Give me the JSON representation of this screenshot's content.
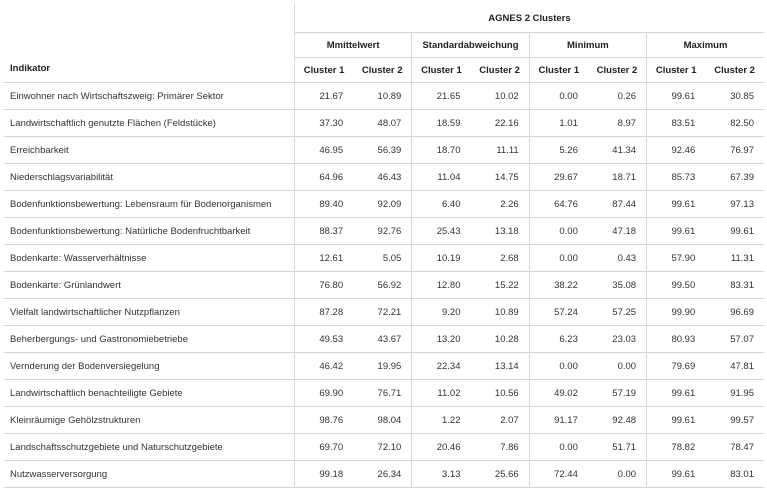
{
  "table": {
    "indicator_header": "Indikator",
    "title": "AGNES 2 Clusters",
    "groups": [
      "Mmittelwert",
      "Standardabweichung",
      "Minimum",
      "Maximum"
    ],
    "cluster_labels": [
      "Cluster 1",
      "Cluster 2"
    ],
    "rows": [
      {
        "label": "Einwohner nach Wirtschaftszweig: Primärer Sektor",
        "values": [
          "21.67",
          "10.89",
          "21.65",
          "10.02",
          "0.00",
          "0.26",
          "99.61",
          "30.85"
        ]
      },
      {
        "label": "Landwirtschaftlich genutzte Flächen (Feldstücke)",
        "values": [
          "37.30",
          "48.07",
          "18.59",
          "22.16",
          "1.01",
          "8.97",
          "83.51",
          "82.50"
        ]
      },
      {
        "label": "Erreichbarkeit",
        "values": [
          "46.95",
          "56.39",
          "18.70",
          "11.11",
          "5.26",
          "41.34",
          "92.46",
          "76.97"
        ]
      },
      {
        "label": "Niederschlagsvariabilität",
        "values": [
          "64.96",
          "46.43",
          "11.04",
          "14.75",
          "29.67",
          "18.71",
          "85.73",
          "67.39"
        ]
      },
      {
        "label": "Bodenfunktionsbewertung: Lebensraum für Bodenorganismen",
        "values": [
          "89.40",
          "92.09",
          "6.40",
          "2.26",
          "64.76",
          "87.44",
          "99.61",
          "97.13"
        ]
      },
      {
        "label": "Bodenfunktionsbewertung: Natürliche Bodenfruchtbarkeit",
        "values": [
          "88.37",
          "92.76",
          "25.43",
          "13.18",
          "0.00",
          "47.18",
          "99.61",
          "99.61"
        ]
      },
      {
        "label": "Bodenkarte: Wasserverhältnisse",
        "values": [
          "12.61",
          "5.05",
          "10.19",
          "2.68",
          "0.00",
          "0.43",
          "57.90",
          "11.31"
        ]
      },
      {
        "label": "Bodenkarte: Grünlandwert",
        "values": [
          "76.80",
          "56.92",
          "12.80",
          "15.22",
          "38.22",
          "35.08",
          "99.50",
          "83.31"
        ]
      },
      {
        "label": "Vielfalt landwirtschaftlicher Nutzpflanzen",
        "values": [
          "87.28",
          "72.21",
          "9.20",
          "10.89",
          "57.24",
          "57.25",
          "99.90",
          "96.69"
        ]
      },
      {
        "label": "Beherbergungs- und Gastronomiebetriebe",
        "values": [
          "49.53",
          "43.67",
          "13.20",
          "10.28",
          "6.23",
          "23.03",
          "80.93",
          "57.07"
        ]
      },
      {
        "label": "Vernderung der Bodenversiegelung",
        "values": [
          "46.42",
          "19.95",
          "22.34",
          "13.14",
          "0.00",
          "0.00",
          "79.69",
          "47.81"
        ]
      },
      {
        "label": "Landwirtschaftlich benachteiligte Gebiete",
        "values": [
          "69.90",
          "76.71",
          "11.02",
          "10.56",
          "49.02",
          "57.19",
          "99.61",
          "91.95"
        ]
      },
      {
        "label": "Kleinräumige Gehölzstrukturen",
        "values": [
          "98.76",
          "98.04",
          "1.22",
          "2.07",
          "91.17",
          "92.48",
          "99.61",
          "99.57"
        ]
      },
      {
        "label": "Landschaftsschutzgebiete und Naturschutzgebiete",
        "values": [
          "69.70",
          "72.10",
          "20.46",
          "7.86",
          "0.00",
          "51.71",
          "78.82",
          "78.47"
        ]
      },
      {
        "label": "Nutzwasserversorgung",
        "values": [
          "99.18",
          "26.34",
          "3.13",
          "25.66",
          "72.44",
          "0.00",
          "99.61",
          "83.01"
        ]
      }
    ]
  }
}
